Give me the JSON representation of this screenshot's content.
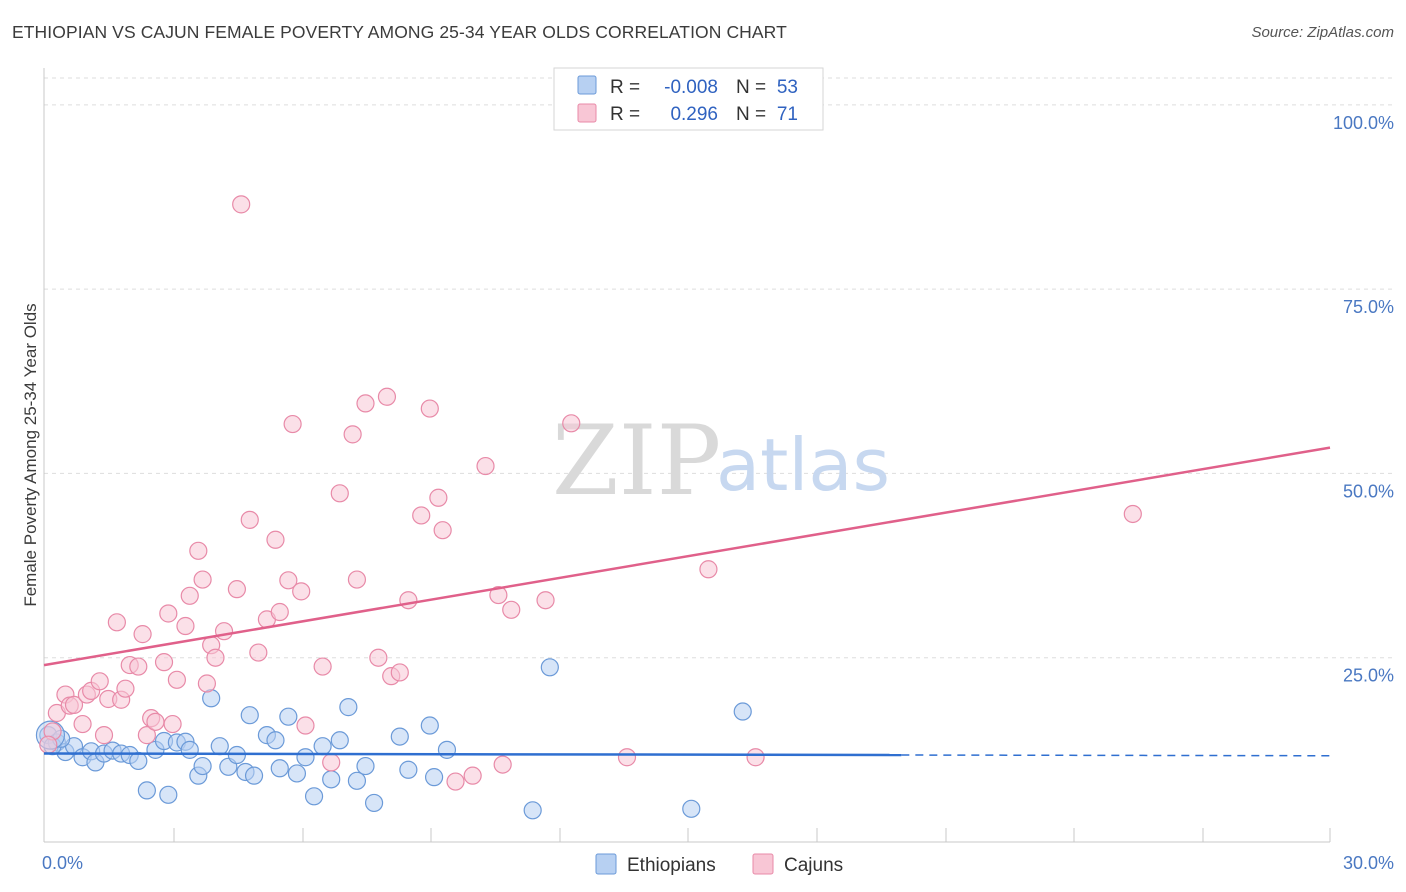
{
  "title": "ETHIOPIAN VS CAJUN FEMALE POVERTY AMONG 25-34 YEAR OLDS CORRELATION CHART",
  "source": "Source: ZipAtlas.com",
  "watermark": {
    "zip": "ZIP",
    "atlas": "atlas"
  },
  "colors": {
    "ethiopians_fill": "#b7d0f2",
    "ethiopians_stroke": "#6b9ad8",
    "ethiopians_line": "#2f6fd0",
    "cajuns_fill": "#f8c6d5",
    "cajuns_stroke": "#e88aa8",
    "cajuns_line": "#e0608a"
  },
  "legend_stats": [
    {
      "r_label": "R =",
      "r_value": "-0.008",
      "n_label": "N =",
      "n_value": "53"
    },
    {
      "r_label": "R =",
      "r_value": "0.296",
      "n_label": "N =",
      "n_value": "71"
    }
  ],
  "chart_data": {
    "type": "scatter",
    "title": "ETHIOPIAN VS CAJUN FEMALE POVERTY AMONG 25-34 YEAR OLDS CORRELATION CHART",
    "xlabel": "",
    "ylabel": "Female Poverty Among 25-34 Year Olds",
    "xlim": [
      0,
      30
    ],
    "ylim": [
      0,
      105
    ],
    "x_tick_labels": [
      "0.0%",
      "30.0%"
    ],
    "y_ticks": [
      25,
      50,
      75,
      100
    ],
    "y_tick_labels": [
      "25.0%",
      "50.0%",
      "75.0%",
      "100.0%"
    ],
    "grid": true,
    "legend_position": "bottom",
    "series": [
      {
        "name": "Ethiopians",
        "trend": {
          "x0": 0,
          "y0": 12.0,
          "x1": 20,
          "y1": 11.8,
          "dashed_to": 30
        },
        "points": [
          [
            0.1,
            14.5
          ],
          [
            0.3,
            13.5
          ],
          [
            0.5,
            12.2
          ],
          [
            0.7,
            13.0
          ],
          [
            0.9,
            11.5
          ],
          [
            1.1,
            12.3
          ],
          [
            1.2,
            10.8
          ],
          [
            1.4,
            12.0
          ],
          [
            1.6,
            12.4
          ],
          [
            1.8,
            12.0
          ],
          [
            2.0,
            11.8
          ],
          [
            2.2,
            11.0
          ],
          [
            2.4,
            7.0
          ],
          [
            2.6,
            12.5
          ],
          [
            2.8,
            13.7
          ],
          [
            2.9,
            6.4
          ],
          [
            3.1,
            13.5
          ],
          [
            3.3,
            13.6
          ],
          [
            3.4,
            12.5
          ],
          [
            3.6,
            9.0
          ],
          [
            3.7,
            10.3
          ],
          [
            3.9,
            19.5
          ],
          [
            4.1,
            13.0
          ],
          [
            4.3,
            10.2
          ],
          [
            4.5,
            11.8
          ],
          [
            4.7,
            9.5
          ],
          [
            4.8,
            17.2
          ],
          [
            4.9,
            9.0
          ],
          [
            5.2,
            14.5
          ],
          [
            5.4,
            13.8
          ],
          [
            5.5,
            10.0
          ],
          [
            5.7,
            17.0
          ],
          [
            5.9,
            9.3
          ],
          [
            6.1,
            11.5
          ],
          [
            6.3,
            6.2
          ],
          [
            6.5,
            13.0
          ],
          [
            6.7,
            8.5
          ],
          [
            6.9,
            13.8
          ],
          [
            7.1,
            18.3
          ],
          [
            7.3,
            8.3
          ],
          [
            7.5,
            10.3
          ],
          [
            7.7,
            5.3
          ],
          [
            8.3,
            14.3
          ],
          [
            8.5,
            9.8
          ],
          [
            9.0,
            15.8
          ],
          [
            9.1,
            8.8
          ],
          [
            9.4,
            12.5
          ],
          [
            11.4,
            4.3
          ],
          [
            11.8,
            23.7
          ],
          [
            15.1,
            4.5
          ],
          [
            16.3,
            17.7
          ],
          [
            0.2,
            13.0
          ],
          [
            0.4,
            14.0
          ]
        ]
      },
      {
        "name": "Cajuns",
        "trend": {
          "x0": 0,
          "y0": 24.0,
          "x1": 30,
          "y1": 53.5
        },
        "points": [
          [
            0.2,
            15.0
          ],
          [
            0.3,
            17.5
          ],
          [
            0.5,
            20.0
          ],
          [
            0.6,
            18.5
          ],
          [
            0.7,
            18.6
          ],
          [
            0.9,
            16.0
          ],
          [
            1.0,
            20.0
          ],
          [
            1.1,
            20.5
          ],
          [
            1.3,
            21.8
          ],
          [
            1.4,
            14.5
          ],
          [
            1.5,
            19.4
          ],
          [
            1.7,
            29.8
          ],
          [
            1.8,
            19.3
          ],
          [
            1.9,
            20.8
          ],
          [
            2.0,
            24.0
          ],
          [
            2.2,
            23.8
          ],
          [
            2.3,
            28.2
          ],
          [
            2.4,
            14.5
          ],
          [
            2.5,
            16.8
          ],
          [
            2.6,
            16.3
          ],
          [
            2.8,
            24.4
          ],
          [
            2.9,
            31.0
          ],
          [
            3.0,
            16.0
          ],
          [
            3.1,
            22.0
          ],
          [
            3.3,
            29.3
          ],
          [
            3.4,
            33.4
          ],
          [
            3.6,
            39.5
          ],
          [
            3.7,
            35.6
          ],
          [
            3.8,
            21.5
          ],
          [
            3.9,
            26.7
          ],
          [
            4.0,
            25.0
          ],
          [
            4.2,
            28.6
          ],
          [
            4.5,
            34.3
          ],
          [
            4.6,
            86.5
          ],
          [
            4.8,
            43.7
          ],
          [
            5.0,
            25.7
          ],
          [
            5.2,
            30.2
          ],
          [
            5.4,
            41.0
          ],
          [
            5.5,
            31.2
          ],
          [
            5.7,
            35.5
          ],
          [
            5.8,
            56.7
          ],
          [
            6.0,
            34.0
          ],
          [
            6.1,
            15.8
          ],
          [
            6.5,
            23.8
          ],
          [
            6.7,
            10.8
          ],
          [
            6.9,
            47.3
          ],
          [
            7.2,
            55.3
          ],
          [
            7.3,
            35.6
          ],
          [
            7.5,
            59.5
          ],
          [
            7.8,
            25.0
          ],
          [
            8.0,
            60.4
          ],
          [
            8.1,
            22.5
          ],
          [
            8.3,
            23.0
          ],
          [
            8.5,
            32.8
          ],
          [
            8.8,
            44.3
          ],
          [
            9.0,
            58.8
          ],
          [
            9.2,
            46.7
          ],
          [
            9.3,
            42.3
          ],
          [
            9.6,
            8.2
          ],
          [
            10.0,
            9.0
          ],
          [
            10.3,
            51.0
          ],
          [
            10.6,
            33.5
          ],
          [
            10.7,
            10.5
          ],
          [
            10.9,
            31.5
          ],
          [
            11.7,
            32.8
          ],
          [
            12.3,
            56.8
          ],
          [
            13.6,
            11.5
          ],
          [
            15.5,
            37.0
          ],
          [
            16.6,
            11.5
          ],
          [
            25.4,
            44.5
          ],
          [
            0.1,
            13.2
          ]
        ]
      }
    ]
  }
}
